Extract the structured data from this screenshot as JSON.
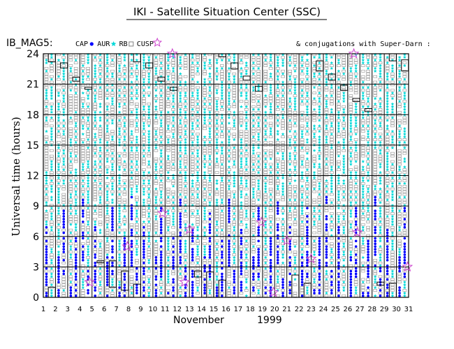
{
  "header": {
    "title": "IKI - Satellite Situation Center (SSC)",
    "panel_label": "IB_MAG5:",
    "conjugation_note": "& conjugations with Super-Darn :"
  },
  "legend": [
    {
      "label": "CAP",
      "symbol": "dot",
      "color": "#0000ff"
    },
    {
      "label": "AUR",
      "symbol": "star",
      "color": "#00d8d8"
    },
    {
      "label": "RB",
      "symbol": "square",
      "color": "#808080"
    },
    {
      "label": "CUSP",
      "symbol": "star-outline",
      "color": "#cc44cc"
    }
  ],
  "chart_data": {
    "type": "scatter",
    "title": "IKI - Satellite Situation Center (SSC)",
    "xlabel": "November 1999",
    "xlabel_month": "November",
    "xlabel_year": "1999",
    "ylabel": "Universal time (hours)",
    "xlim": [
      1,
      31
    ],
    "ylim": [
      0,
      24
    ],
    "x_ticks": [
      1,
      2,
      3,
      4,
      5,
      6,
      7,
      8,
      9,
      10,
      11,
      12,
      13,
      14,
      15,
      16,
      17,
      18,
      19,
      20,
      21,
      22,
      23,
      24,
      25,
      26,
      27,
      28,
      29,
      30,
      31
    ],
    "y_ticks": [
      0,
      3,
      6,
      9,
      12,
      15,
      18,
      21,
      24
    ],
    "grid": true,
    "series_colors": {
      "cap": "#0000ff",
      "aur": "#00d8d8",
      "rb": "#909090",
      "cusp": "#cc44cc",
      "conjugation": "#000000"
    },
    "conjugations": [
      {
        "day": 1.7,
        "start": 0,
        "end": 1.0
      },
      {
        "day": 1.7,
        "start": 23.2,
        "end": 24.0
      },
      {
        "day": 2.7,
        "start": 22.6,
        "end": 23.1
      },
      {
        "day": 3.7,
        "start": 21.3,
        "end": 21.7
      },
      {
        "day": 4.7,
        "start": 20.5,
        "end": 20.7
      },
      {
        "day": 5.7,
        "start": 3.4,
        "end": 3.6
      },
      {
        "day": 6.7,
        "start": 1.0,
        "end": 3.6
      },
      {
        "day": 7.7,
        "start": 0.7,
        "end": 2.6
      },
      {
        "day": 8.7,
        "start": 0,
        "end": 1.3
      },
      {
        "day": 8.7,
        "start": 23.2,
        "end": 24.0
      },
      {
        "day": 9.7,
        "start": 22.6,
        "end": 23.1
      },
      {
        "day": 10.7,
        "start": 21.3,
        "end": 21.7
      },
      {
        "day": 11.7,
        "start": 20.4,
        "end": 20.7
      },
      {
        "day": 13.7,
        "start": 2.0,
        "end": 2.6
      },
      {
        "day": 14.7,
        "start": 0,
        "end": 2.5
      },
      {
        "day": 15.7,
        "start": 0,
        "end": 1.7
      },
      {
        "day": 15.7,
        "start": 23.7,
        "end": 24.0
      },
      {
        "day": 16.7,
        "start": 22.5,
        "end": 23.1
      },
      {
        "day": 17.7,
        "start": 21.4,
        "end": 21.8
      },
      {
        "day": 18.7,
        "start": 20.3,
        "end": 20.8
      },
      {
        "day": 21.7,
        "start": 0,
        "end": 2.2
      },
      {
        "day": 22.7,
        "start": 0,
        "end": 1.4
      },
      {
        "day": 23.7,
        "start": 22.3,
        "end": 23.3
      },
      {
        "day": 24.7,
        "start": 21.4,
        "end": 22.0
      },
      {
        "day": 25.7,
        "start": 20.4,
        "end": 20.9
      },
      {
        "day": 26.7,
        "start": 19.3,
        "end": 19.6
      },
      {
        "day": 27.7,
        "start": 18.3,
        "end": 18.6
      },
      {
        "day": 28.7,
        "start": 1.2,
        "end": 1.5
      },
      {
        "day": 29.7,
        "start": 0,
        "end": 1.4
      },
      {
        "day": 29.7,
        "start": 23.3,
        "end": 24.0
      },
      {
        "day": 30.7,
        "start": 22.3,
        "end": 23.4
      }
    ],
    "cusp_events": [
      {
        "day": 4.8,
        "time": 1.5
      },
      {
        "day": 7.9,
        "time": 5.0
      },
      {
        "day": 10.8,
        "time": 8.3
      },
      {
        "day": 11.6,
        "time": 24.0
      },
      {
        "day": 12.6,
        "time": 1.5
      },
      {
        "day": 13.0,
        "time": 6.7
      },
      {
        "day": 18.9,
        "time": 7.4
      },
      {
        "day": 19.9,
        "time": 0.5
      },
      {
        "day": 21.0,
        "time": 5.6
      },
      {
        "day": 23.0,
        "time": 3.8
      },
      {
        "day": 26.5,
        "time": 24.0
      },
      {
        "day": 26.8,
        "time": 6.4
      },
      {
        "day": 30.9,
        "time": 3.0
      }
    ]
  }
}
